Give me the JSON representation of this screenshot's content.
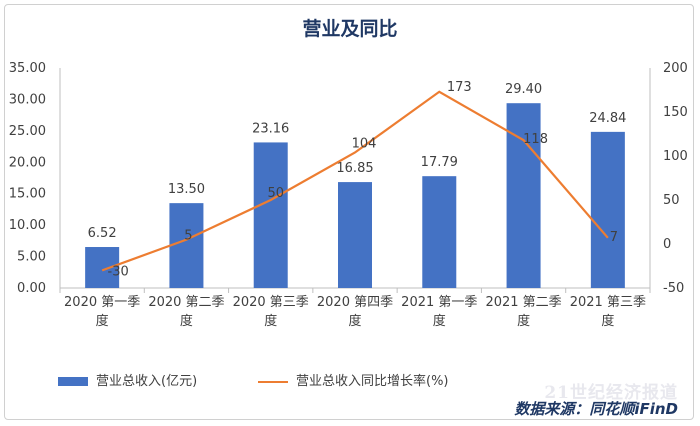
{
  "chart_data": {
    "type": "bar",
    "title": "营业及同比",
    "categories": [
      [
        "2020 第一季",
        "度"
      ],
      [
        "2020 第二季",
        "度"
      ],
      [
        "2020 第三季",
        "度"
      ],
      [
        "2020 第四季",
        "度"
      ],
      [
        "2021 第一季",
        "度"
      ],
      [
        "2021 第二季",
        "度"
      ],
      [
        "2021 第三季",
        "度"
      ]
    ],
    "series": [
      {
        "name": "营业总收入(亿元)",
        "type": "bar",
        "axis": "left",
        "values": [
          6.52,
          13.5,
          23.16,
          16.85,
          17.79,
          29.4,
          24.84
        ],
        "labels": [
          "6.52",
          "13.50",
          "23.16",
          "16.85",
          "17.79",
          "29.40",
          "24.84"
        ],
        "color": "#4472c4"
      },
      {
        "name": "营业总收入同比增长率(%)",
        "type": "line",
        "axis": "right",
        "values": [
          -30,
          5,
          50,
          104,
          173,
          118,
          7
        ],
        "labels": [
          "-30",
          "5",
          "50",
          "104",
          "173",
          "118",
          "7"
        ],
        "color": "#ed7d31"
      }
    ],
    "left_axis": {
      "ylim": [
        0,
        35
      ],
      "ticks": [
        "0.00",
        "5.00",
        "10.00",
        "15.00",
        "20.00",
        "25.00",
        "30.00",
        "35.00"
      ]
    },
    "right_axis": {
      "ylim": [
        -50,
        200
      ],
      "ticks": [
        "-50",
        "0",
        "50",
        "100",
        "150",
        "200"
      ]
    },
    "grid": false,
    "legend": "bottom"
  },
  "watermark": "21世纪经济报道",
  "source": "数据来源：同花顺iFinD"
}
